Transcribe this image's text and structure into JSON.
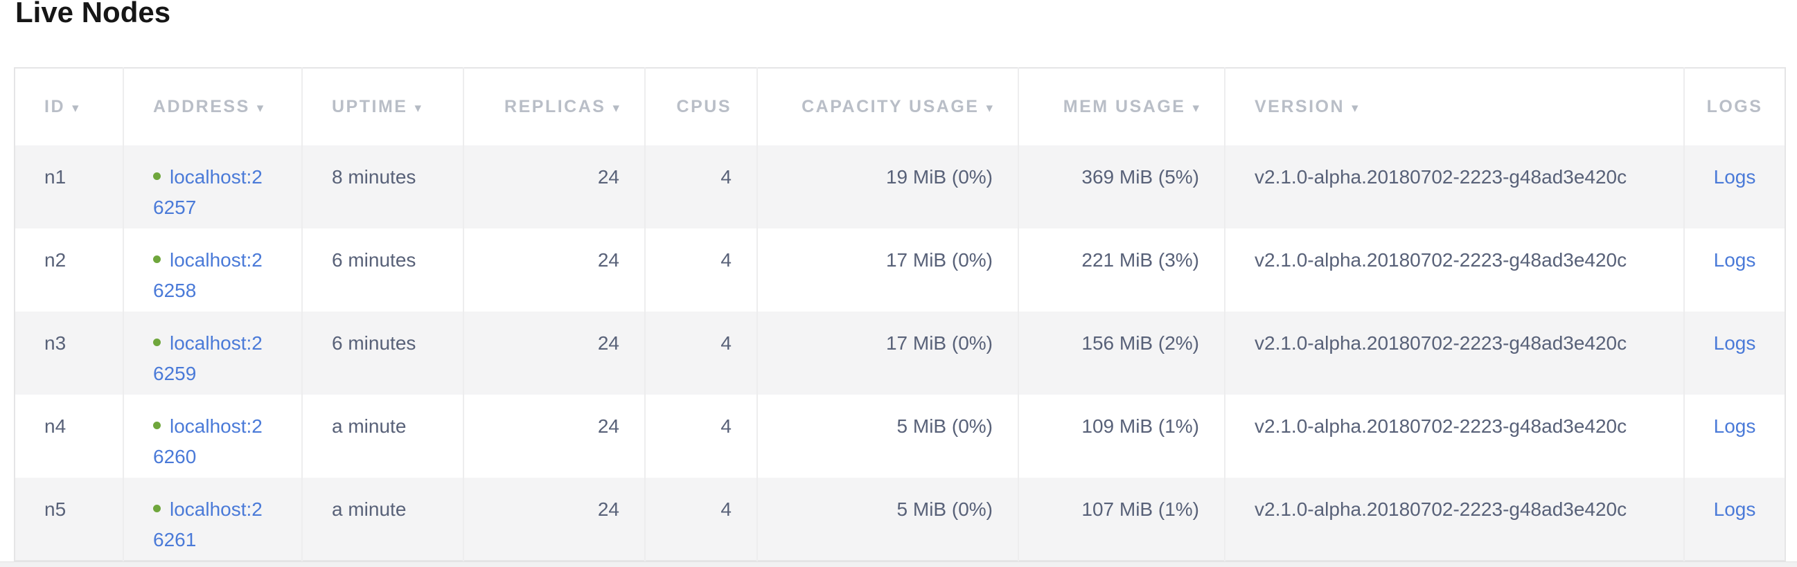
{
  "page": {
    "title": "Live Nodes"
  },
  "table": {
    "sort_indicator": "▾",
    "columns": [
      {
        "key": "id",
        "label": "ID",
        "sortable": true,
        "align": "left"
      },
      {
        "key": "address",
        "label": "ADDRESS",
        "sortable": true,
        "align": "left"
      },
      {
        "key": "uptime",
        "label": "UPTIME",
        "sortable": true,
        "align": "left"
      },
      {
        "key": "replicas",
        "label": "REPLICAS",
        "sortable": true,
        "align": "right"
      },
      {
        "key": "cpus",
        "label": "CPUS",
        "sortable": false,
        "align": "right"
      },
      {
        "key": "capacity",
        "label": "CAPACITY USAGE",
        "sortable": true,
        "align": "right"
      },
      {
        "key": "mem",
        "label": "MEM USAGE",
        "sortable": true,
        "align": "right"
      },
      {
        "key": "version",
        "label": "VERSION",
        "sortable": true,
        "align": "left"
      },
      {
        "key": "logs",
        "label": "LOGS",
        "sortable": false,
        "align": "center"
      }
    ],
    "rows": [
      {
        "id": "n1",
        "status": "live",
        "address": "localhost:26257",
        "address_lines": [
          "localhost:2",
          "6257"
        ],
        "uptime": "8 minutes",
        "replicas": "24",
        "cpus": "4",
        "capacity": "19 MiB (0%)",
        "mem": "369 MiB (5%)",
        "version": "v2.1.0-alpha.20180702-2223-g48ad3e420c",
        "logs_label": "Logs"
      },
      {
        "id": "n2",
        "status": "live",
        "address": "localhost:26258",
        "address_lines": [
          "localhost:2",
          "6258"
        ],
        "uptime": "6 minutes",
        "replicas": "24",
        "cpus": "4",
        "capacity": "17 MiB (0%)",
        "mem": "221 MiB (3%)",
        "version": "v2.1.0-alpha.20180702-2223-g48ad3e420c",
        "logs_label": "Logs"
      },
      {
        "id": "n3",
        "status": "live",
        "address": "localhost:26259",
        "address_lines": [
          "localhost:2",
          "6259"
        ],
        "uptime": "6 minutes",
        "replicas": "24",
        "cpus": "4",
        "capacity": "17 MiB (0%)",
        "mem": "156 MiB (2%)",
        "version": "v2.1.0-alpha.20180702-2223-g48ad3e420c",
        "logs_label": "Logs"
      },
      {
        "id": "n4",
        "status": "live",
        "address": "localhost:26260",
        "address_lines": [
          "localhost:2",
          "6260"
        ],
        "uptime": "a minute",
        "replicas": "24",
        "cpus": "4",
        "capacity": "5 MiB (0%)",
        "mem": "109 MiB (1%)",
        "version": "v2.1.0-alpha.20180702-2223-g48ad3e420c",
        "logs_label": "Logs"
      },
      {
        "id": "n5",
        "status": "live",
        "address": "localhost:26261",
        "address_lines": [
          "localhost:2",
          "6261"
        ],
        "uptime": "a minute",
        "replicas": "24",
        "cpus": "4",
        "capacity": "5 MiB (0%)",
        "mem": "107 MiB (1%)",
        "version": "v2.1.0-alpha.20180702-2223-g48ad3e420c",
        "logs_label": "Logs"
      }
    ]
  },
  "colors": {
    "link_blue": "#4a7ad8",
    "live_dot_green": "#6fa63c",
    "row_stripe": "#f4f4f5",
    "header_text": "#b9bec7",
    "cell_text": "#586178",
    "border": "#ededee",
    "title_text": "#161616"
  }
}
